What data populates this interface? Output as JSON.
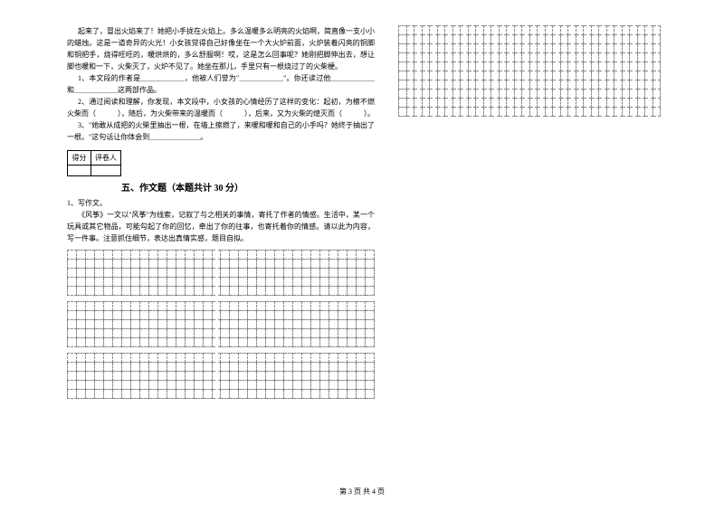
{
  "passage": {
    "p1": "起来了，冒出火焰来了！她把小手拢在火焰上。多么温暖多么明亮的火焰啊，简直像一支小小的蜡烛。这是一道奇异的火光！小女孩觉得自己好像坐在一个大火炉前面，火炉装着闪亮的铜脚和铜把手，烧得旺旺的，暖烘烘的，多么舒服啊！哎，这是怎么回事呢？她刚把脚伸出去，想让脚也暖和一下，火柴灭了，火炉不见了。她坐在那儿，手里只有一根烧过了的火柴梗。",
    "q1a": "1、本文段的作者是＿＿＿＿＿＿，他被人们誉为\"＿＿＿＿＿＿\"。你还读过他＿＿＿＿＿＿和＿＿＿＿＿＿这两部作品。",
    "q2": "2、通过阅读和理解，你发现，本文段中，小女孩的心情经历了这样的变化：起初，为檫不燃火柴而（　　　），随后，为火柴带来的温暖而（　　　），后来，又为火柴的熄灭而（　　　）。",
    "q3": "3、\"她敢从成把的火柴里抽出一根，在墙上擦燃了，来暖和暖和自己的小手吗？她终于抽出了一根。\"这句话让你体会到＿＿＿＿＿＿＿。"
  },
  "scoreLabels": {
    "a": "得分",
    "b": "评卷人"
  },
  "section5": {
    "title": "五、作文题（本题共计 30 分）",
    "p1": "1、写作文。",
    "p2": "《风筝》一文以\"风筝\"为线索，记叙了与之相关的事情，寄托了作者的情感。生活中，某一个玩具或其它物品，可能勾起了你的回忆，牵出了你的往事，也寄托着你的情感。请以此为内容，写一件事。注意抓住细节，表达出真情实感，题目自拟。"
  },
  "grid": {
    "leftRows1": 5,
    "leftRows2": 5,
    "leftRows3": 5,
    "rightRows": 10,
    "cols": 34
  },
  "footer": "第 3 页 共 4 页"
}
